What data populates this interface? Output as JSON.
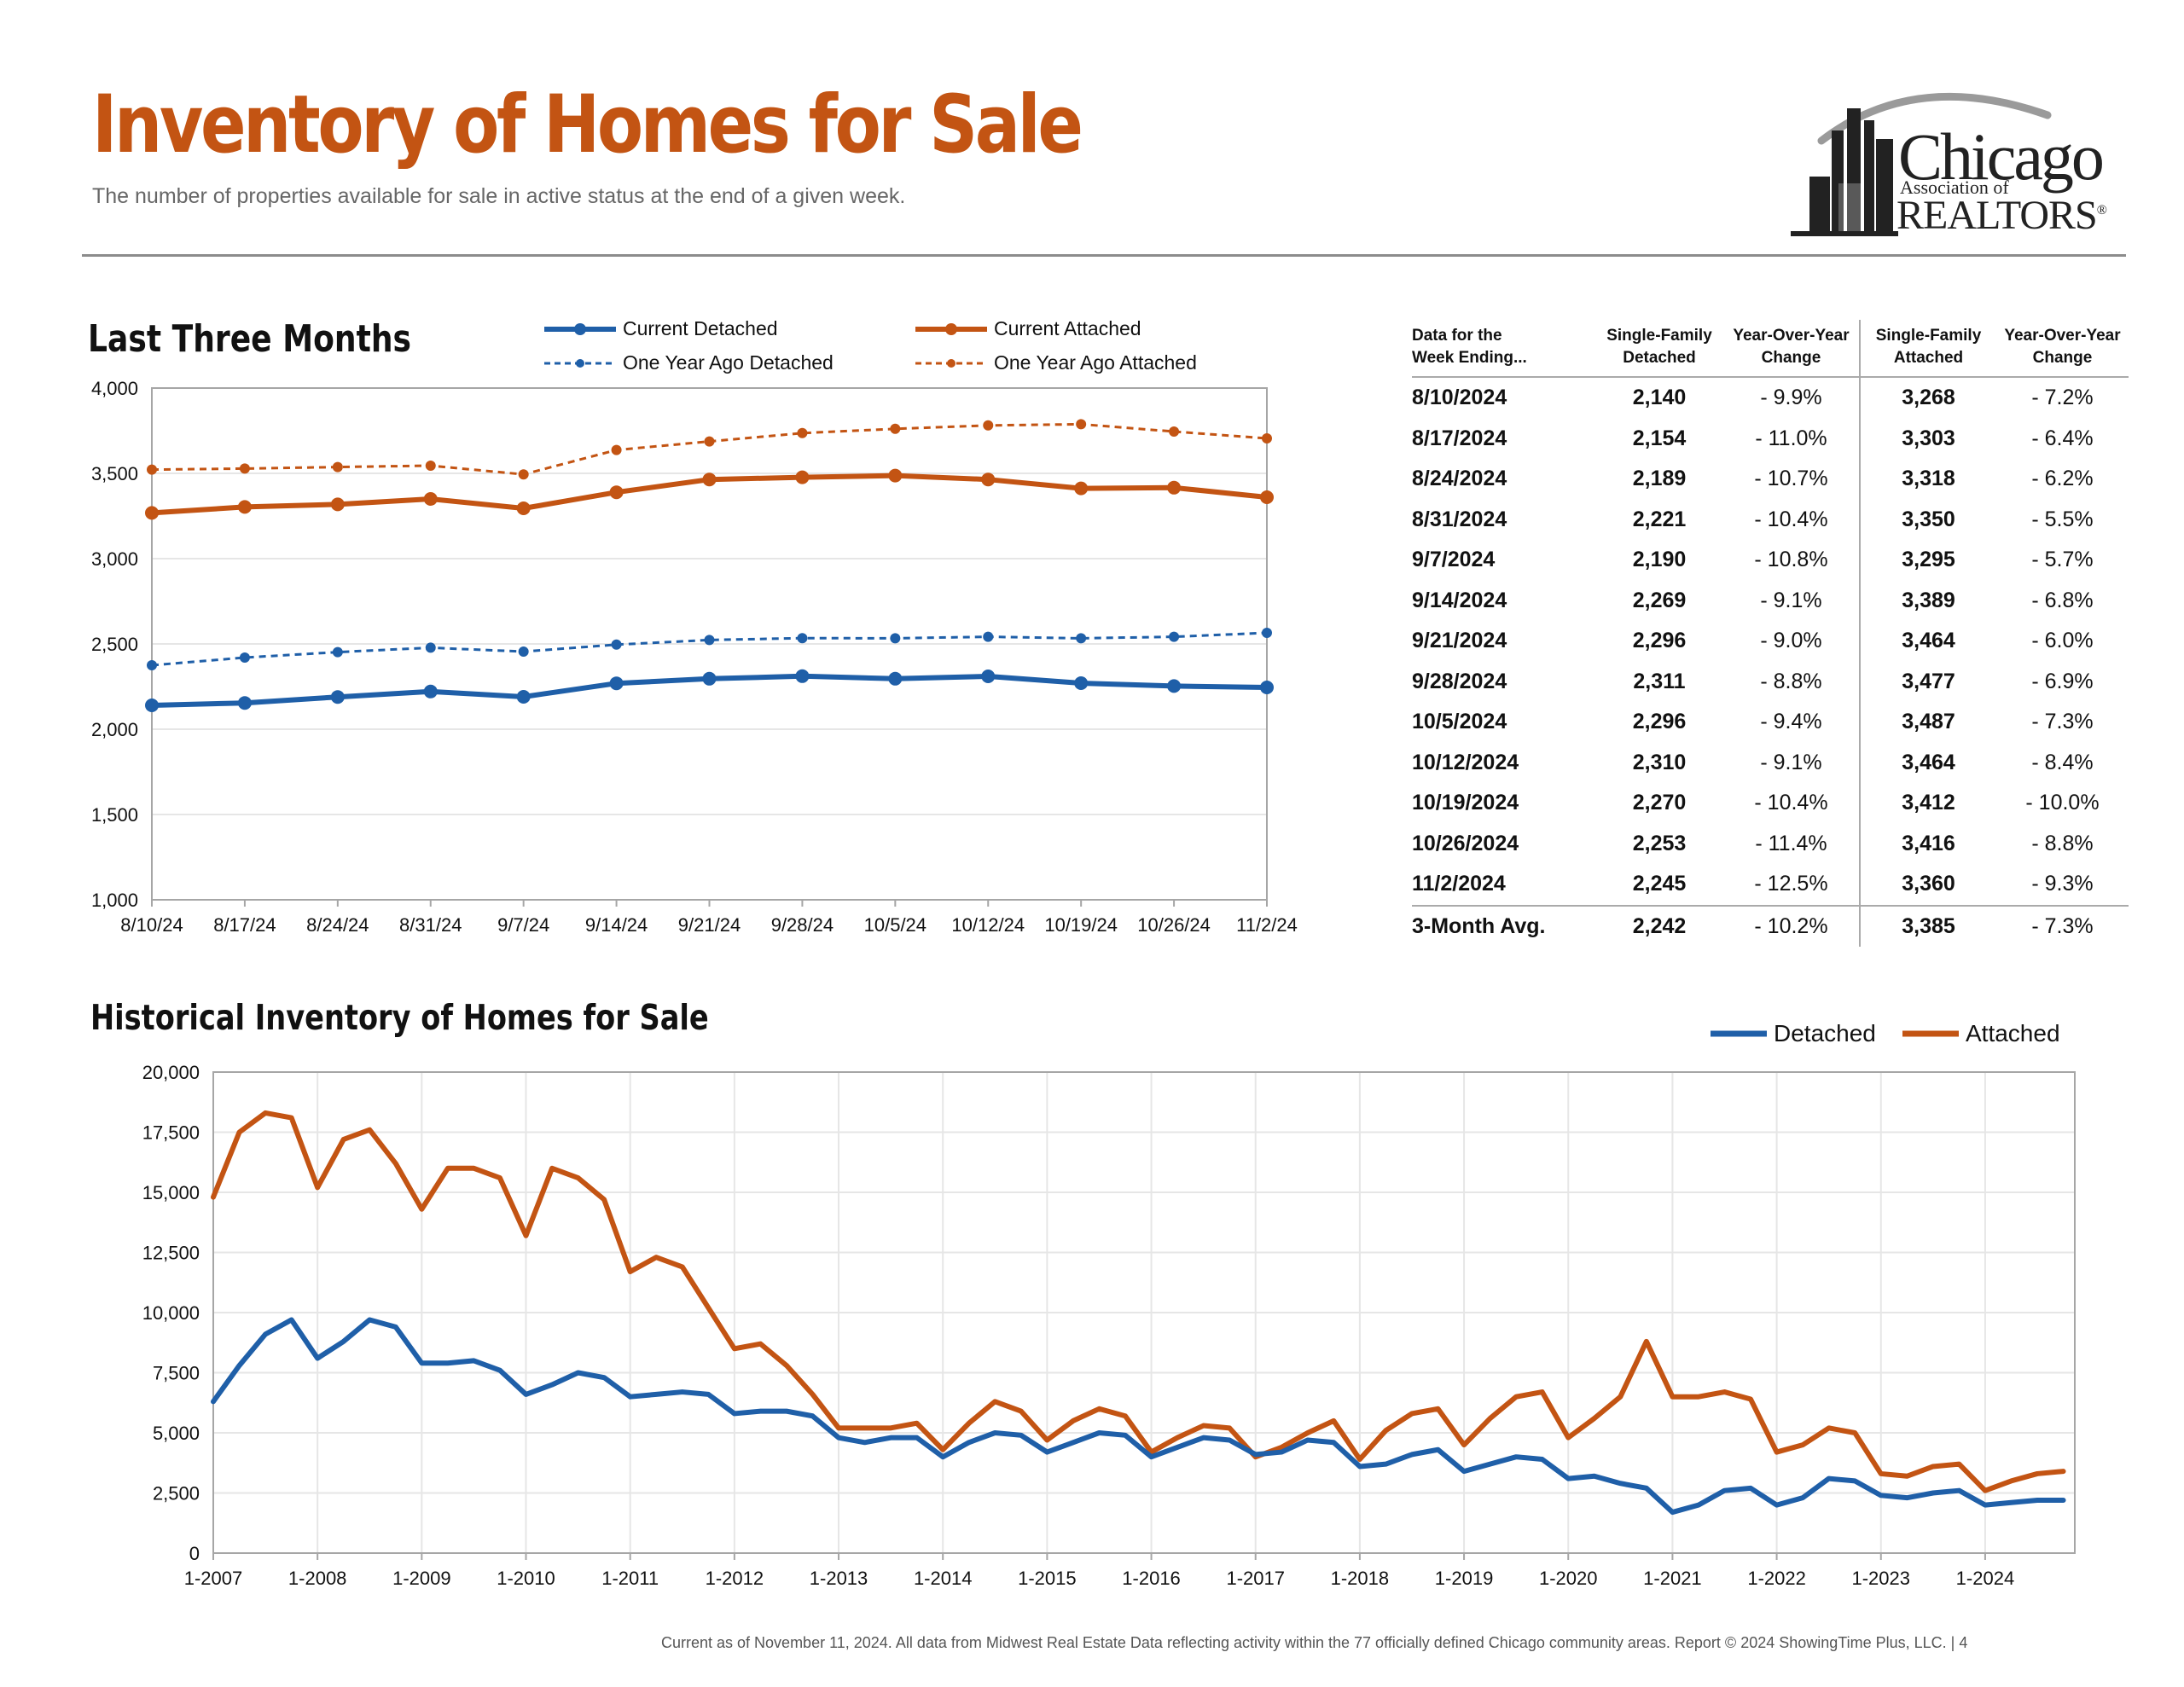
{
  "header": {
    "title": "Inventory of Homes for Sale",
    "subtitle": "The number of properties available for sale in active status at the end of a given week."
  },
  "logo": {
    "line1": "Chicago",
    "line2": "Association of",
    "line3": "REALTORS",
    "reg_mark": "®"
  },
  "colors": {
    "detached": "#1f5fa8",
    "attached": "#c35413",
    "title": "#c35413",
    "grid": "#e6e6e6"
  },
  "recent": {
    "title": "Last Three Months",
    "legend": {
      "current_detached": "Current Detached",
      "current_attached": "Current Attached",
      "ya_detached": "One Year Ago Detached",
      "ya_attached": "One Year Ago Attached"
    }
  },
  "historical": {
    "title": "Historical Inventory of Homes for Sale",
    "legend": {
      "detached": "Detached",
      "attached": "Attached"
    }
  },
  "table": {
    "headers": [
      [
        "Data for the",
        "Week Ending..."
      ],
      [
        "Single-Family",
        "Detached"
      ],
      [
        "Year-Over-Year",
        "Change"
      ],
      [
        "Single-Family",
        "Attached"
      ],
      [
        "Year-Over-Year",
        "Change"
      ]
    ],
    "rows": [
      [
        "8/10/2024",
        "2,140",
        "- 9.9%",
        "3,268",
        "- 7.2%"
      ],
      [
        "8/17/2024",
        "2,154",
        "- 11.0%",
        "3,303",
        "- 6.4%"
      ],
      [
        "8/24/2024",
        "2,189",
        "- 10.7%",
        "3,318",
        "- 6.2%"
      ],
      [
        "8/31/2024",
        "2,221",
        "- 10.4%",
        "3,350",
        "- 5.5%"
      ],
      [
        "9/7/2024",
        "2,190",
        "- 10.8%",
        "3,295",
        "- 5.7%"
      ],
      [
        "9/14/2024",
        "2,269",
        "- 9.1%",
        "3,389",
        "- 6.8%"
      ],
      [
        "9/21/2024",
        "2,296",
        "- 9.0%",
        "3,464",
        "- 6.0%"
      ],
      [
        "9/28/2024",
        "2,311",
        "- 8.8%",
        "3,477",
        "- 6.9%"
      ],
      [
        "10/5/2024",
        "2,296",
        "- 9.4%",
        "3,487",
        "- 7.3%"
      ],
      [
        "10/12/2024",
        "2,310",
        "- 9.1%",
        "3,464",
        "- 8.4%"
      ],
      [
        "10/19/2024",
        "2,270",
        "- 10.4%",
        "3,412",
        "- 10.0%"
      ],
      [
        "10/26/2024",
        "2,253",
        "- 11.4%",
        "3,416",
        "- 8.8%"
      ],
      [
        "11/2/2024",
        "2,245",
        "- 12.5%",
        "3,360",
        "- 9.3%"
      ]
    ],
    "average": [
      "3-Month Avg.",
      "2,242",
      "- 10.2%",
      "3,385",
      "- 7.3%"
    ]
  },
  "footer": "Current as of November 11, 2024.  All data from Midwest Real Estate Data reflecting activity within the 77 officially defined Chicago community areas. Report © 2024 ShowingTime Plus, LLC.  |  4",
  "chart_data": [
    {
      "type": "line",
      "title": "Last Three Months",
      "categories": [
        "8/10/24",
        "8/17/24",
        "8/24/24",
        "8/31/24",
        "9/7/24",
        "9/14/24",
        "9/21/24",
        "9/28/24",
        "10/5/24",
        "10/12/24",
        "10/19/24",
        "10/26/24",
        "11/2/24"
      ],
      "ylim": [
        1000,
        4000
      ],
      "yticks": [
        1000,
        1500,
        2000,
        2500,
        3000,
        3500,
        4000
      ],
      "ytick_labels": [
        "1,000",
        "1,500",
        "2,000",
        "2,500",
        "3,000",
        "3,500",
        "4,000"
      ],
      "grid": true,
      "legend_position": "top",
      "series": [
        {
          "name": "Current Detached",
          "style": "solid",
          "color": "#1f5fa8",
          "values": [
            2140,
            2154,
            2189,
            2221,
            2190,
            2269,
            2296,
            2311,
            2296,
            2310,
            2270,
            2253,
            2245
          ]
        },
        {
          "name": "Current Attached",
          "style": "solid",
          "color": "#c35413",
          "values": [
            3268,
            3303,
            3318,
            3350,
            3295,
            3389,
            3464,
            3477,
            3487,
            3464,
            3412,
            3416,
            3360
          ]
        },
        {
          "name": "One Year Ago Detached",
          "style": "dashed",
          "color": "#1f5fa8",
          "values": [
            2375,
            2420,
            2452,
            2478,
            2455,
            2496,
            2523,
            2534,
            2533,
            2542,
            2533,
            2542,
            2565
          ]
        },
        {
          "name": "One Year Ago Attached",
          "style": "dashed",
          "color": "#c35413",
          "values": [
            3522,
            3528,
            3537,
            3545,
            3494,
            3637,
            3687,
            3736,
            3761,
            3781,
            3788,
            3745,
            3705
          ]
        }
      ]
    },
    {
      "type": "line",
      "title": "Historical Inventory of Homes for Sale",
      "x_start": 2007.0,
      "x_end": 2024.86,
      "x_step_years": 0.25,
      "xticks": [
        2007,
        2008,
        2009,
        2010,
        2011,
        2012,
        2013,
        2014,
        2015,
        2016,
        2017,
        2018,
        2019,
        2020,
        2021,
        2022,
        2023,
        2024
      ],
      "xtick_labels": [
        "1-2007",
        "1-2008",
        "1-2009",
        "1-2010",
        "1-2011",
        "1-2012",
        "1-2013",
        "1-2014",
        "1-2015",
        "1-2016",
        "1-2017",
        "1-2018",
        "1-2019",
        "1-2020",
        "1-2021",
        "1-2022",
        "1-2023",
        "1-2024"
      ],
      "ylim": [
        0,
        20000
      ],
      "yticks": [
        0,
        2500,
        5000,
        7500,
        10000,
        12500,
        15000,
        17500,
        20000
      ],
      "ytick_labels": [
        "0",
        "2,500",
        "5,000",
        "7,500",
        "10,000",
        "12,500",
        "15,000",
        "17,500",
        "20,000"
      ],
      "grid": true,
      "legend_position": "top-right",
      "series": [
        {
          "name": "Detached",
          "color": "#1f5fa8",
          "values": [
            6300,
            7800,
            9100,
            9700,
            8100,
            8800,
            9700,
            9400,
            7900,
            7900,
            8000,
            7600,
            6600,
            7000,
            7500,
            7300,
            6500,
            6600,
            6700,
            6600,
            5800,
            5900,
            5900,
            5700,
            4800,
            4600,
            4800,
            4800,
            4000,
            4600,
            5000,
            4900,
            4200,
            4600,
            5000,
            4900,
            4000,
            4400,
            4800,
            4700,
            4100,
            4200,
            4700,
            4600,
            3600,
            3700,
            4100,
            4300,
            3400,
            3700,
            4000,
            3900,
            3100,
            3200,
            2900,
            2700,
            1700,
            2000,
            2600,
            2700,
            2000,
            2300,
            3100,
            3000,
            2400,
            2300,
            2500,
            2600,
            2000,
            2100,
            2200,
            2200
          ]
        },
        {
          "name": "Attached",
          "color": "#c35413",
          "values": [
            14800,
            17500,
            18300,
            18100,
            15200,
            17200,
            17600,
            16200,
            14300,
            16000,
            16000,
            15600,
            13200,
            16000,
            15600,
            14700,
            11700,
            12300,
            11900,
            10200,
            8500,
            8700,
            7800,
            6600,
            5200,
            5200,
            5200,
            5400,
            4300,
            5400,
            6300,
            5900,
            4700,
            5500,
            6000,
            5700,
            4200,
            4800,
            5300,
            5200,
            4000,
            4400,
            5000,
            5500,
            3900,
            5100,
            5800,
            6000,
            4500,
            5600,
            6500,
            6700,
            4800,
            5600,
            6500,
            8800,
            6500,
            6500,
            6700,
            6400,
            4200,
            4500,
            5200,
            5000,
            3300,
            3200,
            3600,
            3700,
            2600,
            3000,
            3300,
            3400
          ]
        }
      ]
    }
  ]
}
